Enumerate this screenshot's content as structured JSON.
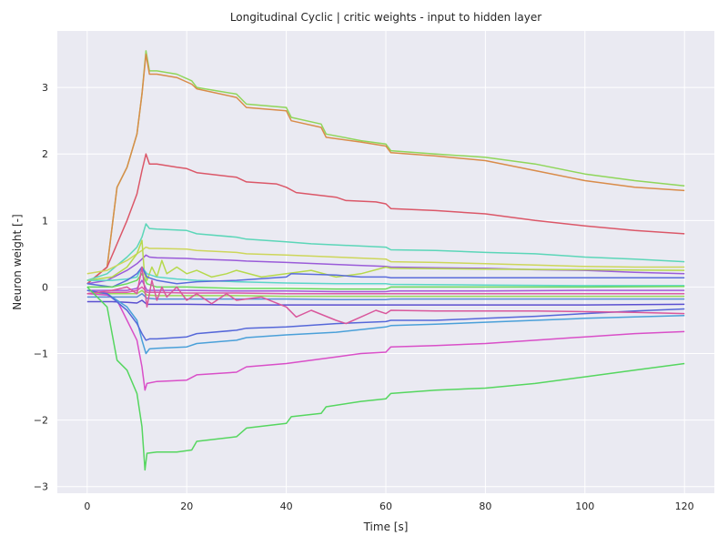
{
  "chart_data": {
    "type": "line",
    "title": "Longitudinal Cyclic | critic weights - input to hidden layer",
    "xlabel": "Time [s]",
    "ylabel": "Neuron weight [-]",
    "xlim": [
      -6,
      126
    ],
    "ylim": [
      -3.1,
      3.85
    ],
    "xticks": [
      0,
      20,
      40,
      60,
      80,
      100,
      120
    ],
    "yticks": [
      -3,
      -2,
      -1,
      0,
      1,
      2,
      3
    ],
    "grid": true,
    "legend": "none",
    "colors": {
      "background": "#eaeaf2",
      "grid": "#ffffff",
      "text": "#262626"
    },
    "series": [
      {
        "color": "#8fd65a",
        "x": [
          0,
          4,
          6,
          8,
          10,
          11,
          11.8,
          12.5,
          14,
          18,
          21,
          22,
          30,
          32,
          40,
          41,
          47,
          48,
          55,
          60,
          61,
          70,
          80,
          90,
          100,
          110,
          120
        ],
        "y": [
          0.05,
          0.3,
          1.5,
          1.8,
          2.3,
          2.9,
          3.55,
          3.25,
          3.25,
          3.2,
          3.1,
          3.0,
          2.9,
          2.75,
          2.7,
          2.55,
          2.45,
          2.3,
          2.2,
          2.15,
          2.05,
          2.0,
          1.95,
          1.85,
          1.7,
          1.6,
          1.52
        ]
      },
      {
        "color": "#d98c4a",
        "x": [
          0,
          4,
          6,
          8,
          10,
          11,
          11.8,
          12.5,
          14,
          18,
          21,
          22,
          30,
          32,
          40,
          41,
          47,
          48,
          55,
          60,
          61,
          70,
          80,
          90,
          100,
          110,
          120
        ],
        "y": [
          0.05,
          0.3,
          1.5,
          1.8,
          2.3,
          2.9,
          3.5,
          3.2,
          3.2,
          3.15,
          3.05,
          2.98,
          2.85,
          2.7,
          2.65,
          2.5,
          2.4,
          2.25,
          2.18,
          2.12,
          2.02,
          1.97,
          1.9,
          1.75,
          1.6,
          1.5,
          1.45
        ]
      },
      {
        "color": "#db5768",
        "x": [
          0,
          4,
          8,
          10,
          11,
          11.8,
          12.5,
          14,
          18,
          20,
          22,
          30,
          32,
          38,
          40,
          42,
          50,
          52,
          58,
          60,
          61,
          70,
          80,
          90,
          100,
          110,
          120
        ],
        "y": [
          0.05,
          0.3,
          1.0,
          1.4,
          1.75,
          2.0,
          1.85,
          1.85,
          1.8,
          1.78,
          1.72,
          1.65,
          1.58,
          1.55,
          1.5,
          1.42,
          1.35,
          1.3,
          1.28,
          1.25,
          1.18,
          1.15,
          1.1,
          1.0,
          0.92,
          0.85,
          0.8
        ]
      },
      {
        "color": "#5bd6b8",
        "x": [
          0,
          4,
          8,
          10,
          11,
          11.8,
          12.5,
          14,
          20,
          22,
          30,
          32,
          40,
          45,
          60,
          61,
          70,
          80,
          90,
          100,
          110,
          120
        ],
        "y": [
          0.1,
          0.2,
          0.45,
          0.6,
          0.75,
          0.95,
          0.88,
          0.87,
          0.85,
          0.8,
          0.75,
          0.72,
          0.68,
          0.65,
          0.6,
          0.56,
          0.55,
          0.52,
          0.5,
          0.45,
          0.42,
          0.38
        ]
      },
      {
        "color": "#cdd65a",
        "x": [
          0,
          4,
          8,
          10,
          11,
          11.8,
          12.5,
          14,
          20,
          22,
          30,
          32,
          40,
          50,
          60,
          61,
          70,
          80,
          90,
          100,
          110,
          120
        ],
        "y": [
          0.2,
          0.25,
          0.4,
          0.5,
          0.55,
          0.6,
          0.58,
          0.58,
          0.57,
          0.55,
          0.52,
          0.5,
          0.48,
          0.45,
          0.42,
          0.38,
          0.37,
          0.35,
          0.33,
          0.31,
          0.3,
          0.3
        ]
      },
      {
        "color": "#9a5bd9",
        "x": [
          0,
          4,
          8,
          10,
          11,
          11.8,
          12.5,
          14,
          20,
          22,
          30,
          32,
          40,
          50,
          60,
          61,
          70,
          80,
          90,
          100,
          110,
          120
        ],
        "y": [
          0.05,
          0.1,
          0.25,
          0.35,
          0.42,
          0.48,
          0.45,
          0.44,
          0.43,
          0.42,
          0.4,
          0.39,
          0.37,
          0.34,
          0.31,
          0.3,
          0.29,
          0.28,
          0.26,
          0.25,
          0.22,
          0.2
        ]
      },
      {
        "color": "#b6d94c",
        "x": [
          0,
          5,
          8,
          10,
          11,
          11.5,
          12,
          13,
          14,
          15,
          16,
          18,
          20,
          22,
          25,
          28,
          30,
          35,
          40,
          45,
          50,
          55,
          60,
          61,
          80,
          100,
          120
        ],
        "y": [
          0.1,
          0.15,
          0.3,
          0.5,
          0.7,
          0.2,
          0.1,
          0.3,
          0.15,
          0.4,
          0.2,
          0.3,
          0.2,
          0.25,
          0.15,
          0.2,
          0.25,
          0.15,
          0.2,
          0.25,
          0.15,
          0.2,
          0.3,
          0.28,
          0.27,
          0.26,
          0.25
        ]
      },
      {
        "color": "#5bd6c8",
        "x": [
          0,
          5,
          8,
          10,
          11,
          12,
          14,
          18,
          22,
          30,
          40,
          50,
          60,
          61,
          80,
          100,
          120
        ],
        "y": [
          0.1,
          0.1,
          0.12,
          0.15,
          0.3,
          0.2,
          0.15,
          0.12,
          0.1,
          0.08,
          0.06,
          0.05,
          0.05,
          0.04,
          0.03,
          0.02,
          0.02
        ]
      },
      {
        "color": "#5a6cdb",
        "x": [
          0,
          5,
          8,
          10,
          11,
          12,
          14,
          18,
          22,
          30,
          40,
          41,
          50,
          55,
          60,
          61,
          80,
          100,
          120
        ],
        "y": [
          0.05,
          0.0,
          0.1,
          0.2,
          0.3,
          0.15,
          0.1,
          0.05,
          0.08,
          0.1,
          0.15,
          0.2,
          0.18,
          0.15,
          0.15,
          0.14,
          0.14,
          0.14,
          0.14
        ]
      },
      {
        "color": "#6bdb5b",
        "x": [
          0,
          5,
          8,
          10,
          11,
          12,
          14,
          20,
          30,
          40,
          50,
          60,
          61,
          80,
          100,
          120
        ],
        "y": [
          0.0,
          0.0,
          0.05,
          0.1,
          0.2,
          0.05,
          0.0,
          0.0,
          -0.02,
          -0.02,
          -0.03,
          -0.03,
          0.0,
          0.0,
          0.0,
          0.01
        ]
      },
      {
        "color": "#a45bd9",
        "x": [
          0,
          5,
          8,
          10,
          11,
          12,
          14,
          20,
          30,
          40,
          50,
          60,
          61,
          80,
          100,
          120
        ],
        "y": [
          -0.05,
          -0.05,
          -0.05,
          -0.02,
          0.1,
          -0.05,
          -0.05,
          -0.05,
          -0.06,
          -0.06,
          -0.07,
          -0.07,
          -0.06,
          -0.06,
          -0.05,
          -0.05
        ]
      },
      {
        "color": "#db5ba8",
        "x": [
          0,
          5,
          8,
          10,
          11,
          12,
          14,
          20,
          30,
          40,
          50,
          60,
          61,
          80,
          100,
          120
        ],
        "y": [
          -0.1,
          -0.08,
          -0.08,
          -0.05,
          0.0,
          -0.08,
          -0.08,
          -0.09,
          -0.09,
          -0.1,
          -0.1,
          -0.1,
          -0.1,
          -0.1,
          -0.1,
          -0.1
        ]
      },
      {
        "color": "#9ad95b",
        "x": [
          0,
          5,
          8,
          10,
          11,
          12,
          14,
          20,
          30,
          40,
          50,
          60,
          61,
          80,
          100,
          120
        ],
        "y": [
          -0.1,
          -0.1,
          -0.1,
          -0.1,
          -0.05,
          -0.12,
          -0.13,
          -0.13,
          -0.13,
          -0.14,
          -0.14,
          -0.14,
          -0.14,
          -0.14,
          -0.14,
          -0.14
        ]
      },
      {
        "color": "#5b8fd9",
        "x": [
          0,
          5,
          8,
          10,
          11,
          12,
          14,
          20,
          30,
          40,
          50,
          60,
          61,
          80,
          100,
          120
        ],
        "y": [
          -0.15,
          -0.15,
          -0.15,
          -0.15,
          -0.1,
          -0.17,
          -0.18,
          -0.18,
          -0.18,
          -0.18,
          -0.19,
          -0.19,
          -0.18,
          -0.18,
          -0.18,
          -0.18
        ]
      },
      {
        "color": "#5a4fd0",
        "x": [
          0,
          5,
          8,
          10,
          11,
          12,
          14,
          20,
          30,
          40,
          50,
          60,
          61,
          80,
          100,
          120
        ],
        "y": [
          -0.22,
          -0.22,
          -0.23,
          -0.24,
          -0.2,
          -0.26,
          -0.26,
          -0.26,
          -0.27,
          -0.27,
          -0.27,
          -0.27,
          -0.27,
          -0.27,
          -0.27,
          -0.26
        ]
      },
      {
        "color": "#d94fc8",
        "x": [
          0,
          4,
          6,
          8,
          10,
          11,
          11.6,
          12,
          14,
          20,
          22,
          30,
          32,
          40,
          50,
          55,
          60,
          61,
          70,
          80,
          90,
          100,
          110,
          120
        ],
        "y": [
          -0.1,
          -0.12,
          -0.2,
          -0.5,
          -0.8,
          -1.2,
          -1.55,
          -1.45,
          -1.42,
          -1.4,
          -1.32,
          -1.28,
          -1.2,
          -1.15,
          -1.05,
          -1.0,
          -0.98,
          -0.9,
          -0.88,
          -0.85,
          -0.8,
          -0.75,
          -0.7,
          -0.67
        ]
      },
      {
        "color": "#4aa0d9",
        "x": [
          0,
          4,
          8,
          10,
          11,
          11.8,
          12.5,
          14,
          20,
          22,
          30,
          32,
          40,
          50,
          60,
          61,
          70,
          80,
          90,
          100,
          110,
          120
        ],
        "y": [
          -0.05,
          -0.1,
          -0.3,
          -0.5,
          -0.8,
          -1.0,
          -0.93,
          -0.92,
          -0.9,
          -0.85,
          -0.8,
          -0.76,
          -0.72,
          -0.68,
          -0.6,
          -0.58,
          -0.56,
          -0.53,
          -0.5,
          -0.47,
          -0.45,
          -0.43
        ]
      },
      {
        "color": "#5567d9",
        "x": [
          0,
          4,
          8,
          10,
          11,
          11.8,
          12.5,
          14,
          20,
          22,
          30,
          32,
          40,
          50,
          60,
          61,
          70,
          80,
          90,
          100,
          110,
          120
        ],
        "y": [
          -0.05,
          -0.1,
          -0.35,
          -0.55,
          -0.7,
          -0.8,
          -0.78,
          -0.78,
          -0.75,
          -0.7,
          -0.65,
          -0.62,
          -0.6,
          -0.55,
          -0.52,
          -0.5,
          -0.5,
          -0.47,
          -0.44,
          -0.4,
          -0.36,
          -0.33
        ]
      },
      {
        "color": "#d9579c",
        "x": [
          0,
          5,
          8,
          10,
          11,
          12,
          13,
          14,
          15,
          16,
          18,
          20,
          22,
          25,
          28,
          30,
          35,
          40,
          42,
          45,
          50,
          52,
          55,
          58,
          60,
          61,
          70,
          80,
          90,
          100,
          110,
          120
        ],
        "y": [
          -0.1,
          -0.05,
          0.0,
          -0.1,
          0.3,
          -0.3,
          0.1,
          -0.2,
          0.0,
          -0.15,
          0.0,
          -0.2,
          -0.1,
          -0.25,
          -0.1,
          -0.2,
          -0.15,
          -0.3,
          -0.45,
          -0.35,
          -0.5,
          -0.55,
          -0.45,
          -0.35,
          -0.4,
          -0.35,
          -0.36,
          -0.36,
          -0.36,
          -0.37,
          -0.38,
          -0.4
        ]
      },
      {
        "color": "#55d65f",
        "x": [
          0,
          4,
          6,
          8,
          10,
          11,
          11.6,
          12,
          14,
          18,
          21,
          22,
          30,
          32,
          40,
          41,
          47,
          48,
          55,
          60,
          61,
          70,
          80,
          90,
          100,
          110,
          120
        ],
        "y": [
          0.0,
          -0.3,
          -1.1,
          -1.25,
          -1.6,
          -2.1,
          -2.75,
          -2.5,
          -2.48,
          -2.48,
          -2.45,
          -2.32,
          -2.25,
          -2.12,
          -2.05,
          -1.95,
          -1.9,
          -1.8,
          -1.72,
          -1.68,
          -1.6,
          -1.55,
          -1.52,
          -1.45,
          -1.35,
          -1.25,
          -1.15
        ]
      }
    ]
  }
}
